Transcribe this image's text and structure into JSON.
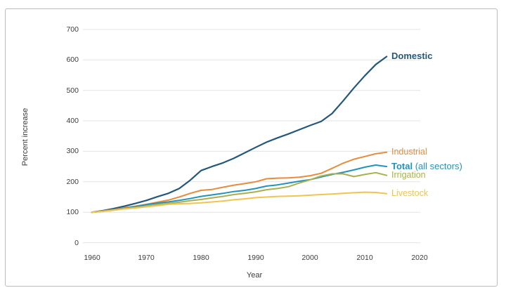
{
  "axes": {
    "y_title": "Percent increase",
    "x_title": "Year"
  },
  "chart_data": {
    "type": "line",
    "title": "",
    "xlabel": "Year",
    "ylabel": "Percent increase",
    "xlim": [
      1958.5,
      2020
    ],
    "ylim": [
      0,
      700
    ],
    "yticks": [
      0,
      100,
      200,
      300,
      400,
      500,
      600,
      700
    ],
    "xticks": [
      1960,
      1970,
      1980,
      1990,
      2000,
      2010,
      2020
    ],
    "grid": "horizontal",
    "legend_position": "end-of-line",
    "x": [
      1960,
      1962,
      1964,
      1966,
      1968,
      1970,
      1972,
      1974,
      1976,
      1978,
      1980,
      1982,
      1984,
      1986,
      1988,
      1990,
      1992,
      1994,
      1996,
      1998,
      2000,
      2002,
      2004,
      2006,
      2008,
      2010,
      2012,
      2014
    ],
    "series": [
      {
        "name": "domestic",
        "label": "Domestic",
        "bold": true,
        "color": "#24587b",
        "values": [
          100,
          105,
          112,
          120,
          129,
          139,
          151,
          162,
          178,
          205,
          237,
          250,
          262,
          277,
          295,
          313,
          330,
          344,
          357,
          371,
          385,
          398,
          424,
          465,
          508,
          548,
          585,
          611
        ]
      },
      {
        "name": "industrial",
        "label": "Industrial",
        "bold": false,
        "color": "#e98b3a",
        "values": [
          100,
          104,
          109,
          115,
          120,
          126,
          133,
          140,
          150,
          162,
          172,
          175,
          182,
          189,
          194,
          200,
          210,
          212,
          213,
          215,
          220,
          228,
          244,
          261,
          274,
          283,
          292,
          297
        ]
      },
      {
        "name": "total",
        "label_bold": "Total",
        "label_rest": " (all sectors)",
        "bold": true,
        "color": "#2292bc",
        "values": [
          100,
          103,
          108,
          113,
          119,
          125,
          130,
          134,
          139,
          145,
          152,
          157,
          162,
          168,
          172,
          178,
          186,
          190,
          196,
          202,
          207,
          216,
          224,
          231,
          239,
          248,
          255,
          250
        ]
      },
      {
        "name": "irrigation",
        "label": "Irrigation",
        "bold": false,
        "color": "#a7b14c",
        "values": [
          100,
          103,
          107,
          112,
          116,
          120,
          125,
          129,
          133,
          138,
          142,
          147,
          152,
          158,
          162,
          167,
          174,
          178,
          184,
          196,
          207,
          219,
          226,
          226,
          217,
          224,
          230,
          221
        ]
      },
      {
        "name": "livestock",
        "label": "Livestock",
        "bold": false,
        "color": "#f1c44f",
        "values": [
          100,
          103,
          107,
          111,
          114,
          118,
          122,
          126,
          128,
          129,
          131,
          134,
          137,
          141,
          144,
          148,
          150,
          152,
          153,
          154,
          156,
          158,
          160,
          162,
          164,
          166,
          165,
          161
        ]
      }
    ],
    "grid_color": "#e3e3e3"
  }
}
